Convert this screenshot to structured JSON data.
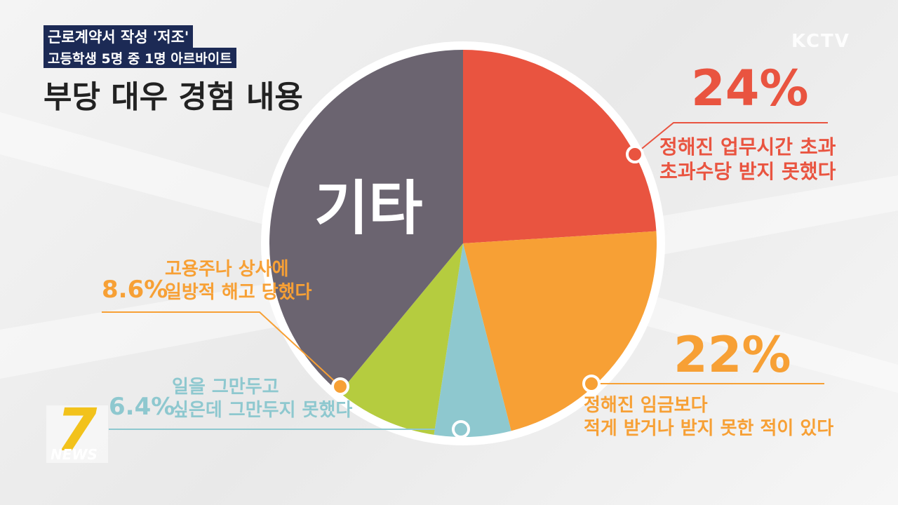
{
  "header": {
    "tag1": "근로계약서 작성 '저조'",
    "tag2": "고등학생 5명 중 1명 아르바이트",
    "title": "부당 대우 경험 내용"
  },
  "logo": "KCTV",
  "news_logo": {
    "number": "7",
    "text": "NEWS"
  },
  "chart_data": {
    "type": "pie",
    "categories": [
      "정해진 업무시간 초과\n초과수당 받지 못했다",
      "정해진 임금보다\n적게 받거나 받지 못한 적이 있다",
      "일을 그만두고\n싶은데 그만두지 못했다",
      "고용주나 상사에\n일방적 해고 당했다",
      "기타"
    ],
    "values": [
      24,
      22,
      6.4,
      8.6,
      39
    ],
    "value_labels": [
      "24%",
      "22%",
      "6.4%",
      "8.6%",
      null
    ],
    "colors": [
      "#e95440",
      "#f7a035",
      "#8ec8cf",
      "#b5cc3f",
      "#6b6470"
    ]
  }
}
